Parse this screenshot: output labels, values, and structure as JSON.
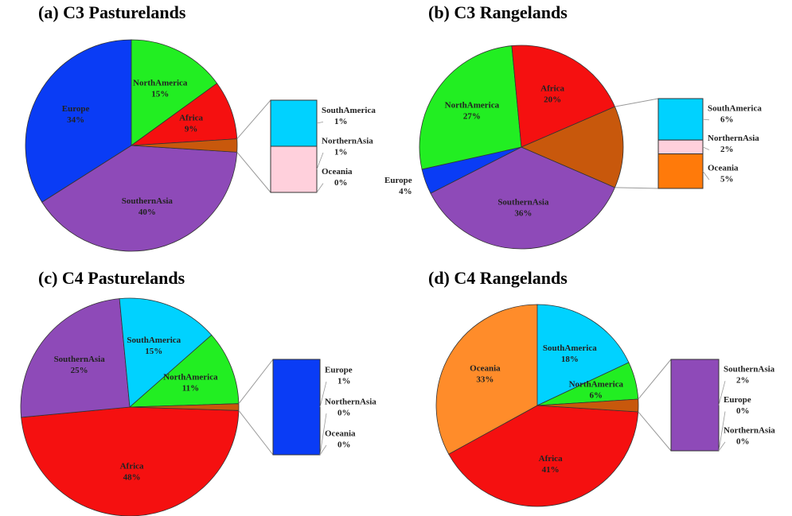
{
  "chart_data": [
    {
      "type": "bar-of-pie",
      "title": "(a) C3 Pasturelands",
      "slices": {
        "labels": [
          "SouthernAsia",
          "Europe",
          "NorthAmerica",
          "Africa"
        ],
        "values": [
          40,
          34,
          15,
          9
        ],
        "value_labels": [
          "40%",
          "34%",
          "15%",
          "9%"
        ],
        "colors": [
          "#8e4ab8",
          "#0a3cf5",
          "#22ee22",
          "#f51010"
        ]
      },
      "other_color": "#c8580c",
      "bar": {
        "labels": [
          "SouthAmerica",
          "NorthernAsia",
          "Oceania"
        ],
        "values": [
          1,
          1,
          0
        ],
        "value_labels": [
          "1%",
          "1%",
          "0%"
        ],
        "colors": [
          "#00d2ff",
          "#ffd0dc",
          "#c8580c"
        ]
      }
    },
    {
      "type": "bar-of-pie",
      "title": "(b) C3 Rangelands",
      "slices": {
        "labels": [
          "SouthernAsia",
          "Europe",
          "NorthAmerica",
          "Africa"
        ],
        "values": [
          36,
          4,
          27,
          20
        ],
        "value_labels": [
          "36%",
          "4%",
          "27%",
          "20%"
        ],
        "colors": [
          "#8e4ab8",
          "#0a3cf5",
          "#22ee22",
          "#f51010"
        ]
      },
      "other_color": "#c8580c",
      "bar": {
        "labels": [
          "SouthAmerica",
          "NorthernAsia",
          "Oceania"
        ],
        "values": [
          6,
          2,
          5
        ],
        "value_labels": [
          "6%",
          "2%",
          "5%"
        ],
        "colors": [
          "#00d2ff",
          "#ffd0dc",
          "#ff7a0a"
        ]
      }
    },
    {
      "type": "bar-of-pie",
      "title": "(c) C4 Pasturelands",
      "slices": {
        "labels": [
          "Africa",
          "SouthernAsia",
          "SouthAmerica",
          "NorthAmerica"
        ],
        "values": [
          48,
          25,
          15,
          11
        ],
        "value_labels": [
          "48%",
          "25%",
          "15%",
          "11%"
        ],
        "colors": [
          "#f51010",
          "#8e4ab8",
          "#00d2ff",
          "#22ee22"
        ]
      },
      "other_color": "#c8580c",
      "bar": {
        "labels": [
          "Europe",
          "NorthernAsia",
          "Oceania"
        ],
        "values": [
          1,
          0,
          0
        ],
        "value_labels": [
          "1%",
          "0%",
          "0%"
        ],
        "colors": [
          "#0a3cf5",
          "#ffd0dc",
          "#ff7a0a"
        ]
      }
    },
    {
      "type": "bar-of-pie",
      "title": "(d) C4 Rangelands",
      "slices": {
        "labels": [
          "Africa",
          "Oceania",
          "SouthAmerica",
          "NorthAmerica"
        ],
        "values": [
          41,
          33,
          18,
          6
        ],
        "value_labels": [
          "41%",
          "33%",
          "18%",
          "6%"
        ],
        "colors": [
          "#f51010",
          "#ff8c2a",
          "#00d2ff",
          "#22ee22"
        ]
      },
      "other_color": "#c8580c",
      "bar": {
        "labels": [
          "SouthernAsia",
          "Europe",
          "NorthernAsia"
        ],
        "values": [
          2,
          0,
          0
        ],
        "value_labels": [
          "2%",
          "0%",
          "0%"
        ],
        "colors": [
          "#8e4ab8",
          "#0a3cf5",
          "#ffd0dc"
        ]
      }
    }
  ]
}
